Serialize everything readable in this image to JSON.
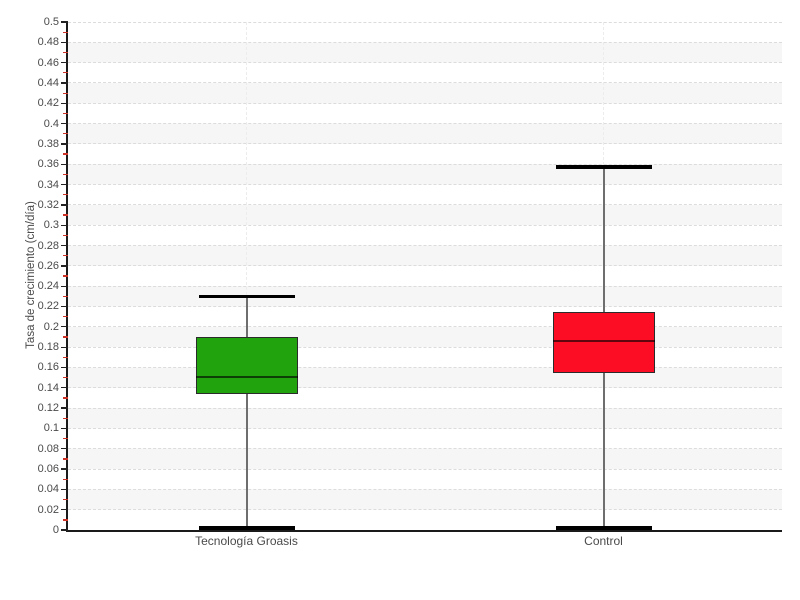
{
  "chart_data": {
    "type": "boxplot",
    "title": "",
    "xlabel": "",
    "ylabel": "Tasa de crecimiento (cm/día)",
    "ylim": [
      0,
      0.5
    ],
    "ytick_step": 0.02,
    "ytick_labels": [
      "0",
      "0.02",
      "0.04",
      "0.06",
      "0.08",
      "0.1",
      "0.12",
      "0.14",
      "0.16",
      "0.18",
      "0.2",
      "0.22",
      "0.24",
      "0.26",
      "0.28",
      "0.3",
      "0.32",
      "0.34",
      "0.36",
      "0.38",
      "0.4",
      "0.42",
      "0.44",
      "0.46",
      "0.48",
      "0.5"
    ],
    "categories": [
      "Tecnología Groasis",
      "Control"
    ],
    "series": [
      {
        "name": "Tecnología Groasis",
        "color": "#21a30e",
        "whisker_low": 0.002,
        "q1": 0.134,
        "median": 0.151,
        "q3": 0.19,
        "whisker_high": 0.23
      },
      {
        "name": "Control",
        "color": "#fc0d24",
        "whisker_low": 0.002,
        "q1": 0.155,
        "median": 0.186,
        "q3": 0.215,
        "whisker_high": 0.357
      }
    ],
    "grid": {
      "horizontal_gridlines": "dashed at every 0.02",
      "vertical_gridlines": "dashed at category centers",
      "zebra_bands": true
    },
    "legend_position": "none"
  },
  "colors": {
    "background": "#ffffff",
    "band_gray": "#f6f6f6",
    "gridline_h": "#dcdcdc",
    "gridline_v": "#ececec",
    "axis": "#1a1a1a",
    "major_tick": "#222222",
    "minor_tick": "#cc3326",
    "whisker": "#6e6e6e",
    "whisker_cap": "#000000",
    "text": "#4a4a4a"
  }
}
